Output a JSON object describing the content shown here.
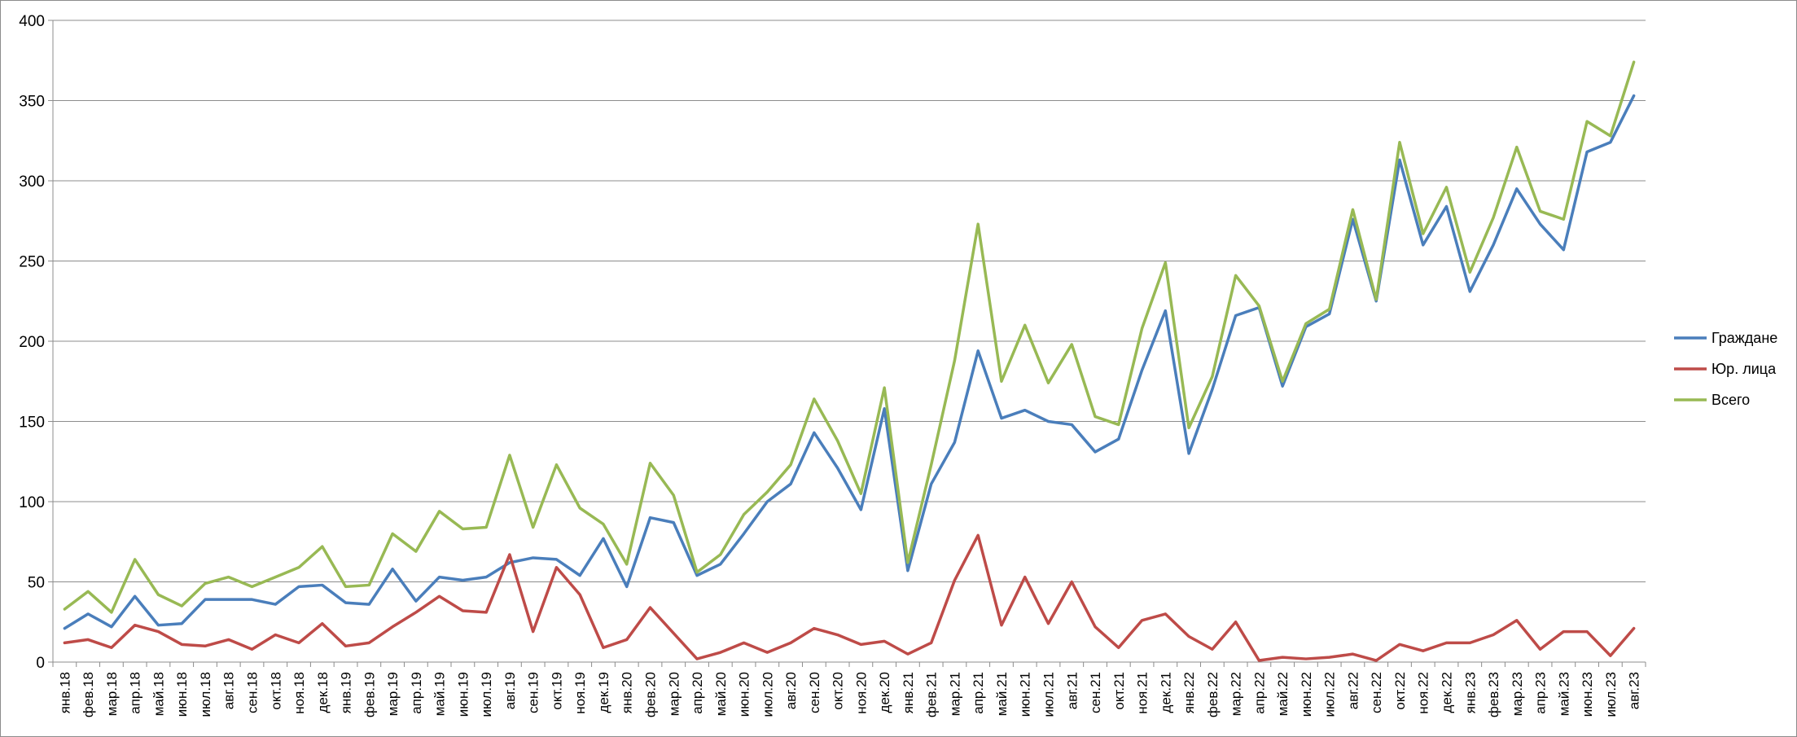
{
  "chart_data": {
    "type": "line",
    "title": "",
    "xlabel": "",
    "ylabel": "",
    "ylim": [
      0,
      400
    ],
    "yticks": [
      0,
      50,
      100,
      150,
      200,
      250,
      300,
      350,
      400
    ],
    "grid": "horizontal",
    "legend_position": "right",
    "categories": [
      "янв.18",
      "фев.18",
      "мар.18",
      "апр.18",
      "май.18",
      "июн.18",
      "июл.18",
      "авг.18",
      "сен.18",
      "окт.18",
      "ноя.18",
      "дек.18",
      "янв.19",
      "фев.19",
      "мар.19",
      "апр.19",
      "май.19",
      "июн.19",
      "июл.19",
      "авг.19",
      "сен.19",
      "окт.19",
      "ноя.19",
      "дек.19",
      "янв.20",
      "фев.20",
      "мар.20",
      "апр.20",
      "май.20",
      "июн.20",
      "июл.20",
      "авг.20",
      "сен.20",
      "окт.20",
      "ноя.20",
      "дек.20",
      "янв.21",
      "фев.21",
      "мар.21",
      "апр.21",
      "май.21",
      "июн.21",
      "июл.21",
      "авг.21",
      "сен.21",
      "окт.21",
      "ноя.21",
      "дек.21",
      "янв.22",
      "фев.22",
      "мар.22",
      "апр.22",
      "май.22",
      "июн.22",
      "июл.22",
      "авг.22",
      "сен.22",
      "окт.22",
      "ноя.22",
      "дек.22",
      "янв.23",
      "фев.23",
      "мар.23",
      "апр.23",
      "май.23",
      "июн.23",
      "июл.23",
      "авг.23"
    ],
    "series": [
      {
        "name": "Граждане",
        "color": "#4a7ebb",
        "values": [
          21,
          30,
          22,
          41,
          23,
          24,
          39,
          39,
          39,
          36,
          47,
          48,
          37,
          36,
          58,
          38,
          53,
          51,
          53,
          62,
          65,
          64,
          54,
          77,
          47,
          90,
          87,
          54,
          61,
          80,
          100,
          111,
          143,
          121,
          95,
          158,
          57,
          111,
          137,
          194,
          152,
          157,
          150,
          148,
          131,
          139,
          182,
          219,
          130,
          170,
          216,
          221,
          172,
          209,
          217,
          276,
          225,
          313,
          260,
          284,
          231,
          260,
          295,
          273,
          257,
          318,
          324,
          353
        ]
      },
      {
        "name": "Юр. лица",
        "color": "#be4b48",
        "values": [
          12,
          14,
          9,
          23,
          19,
          11,
          10,
          14,
          8,
          17,
          12,
          24,
          10,
          12,
          22,
          31,
          41,
          32,
          31,
          67,
          19,
          59,
          42,
          9,
          14,
          34,
          18,
          2,
          6,
          12,
          6,
          12,
          21,
          17,
          11,
          13,
          5,
          12,
          51,
          79,
          23,
          53,
          24,
          50,
          22,
          9,
          26,
          30,
          16,
          8,
          25,
          1,
          3,
          2,
          3,
          5,
          1,
          11,
          7,
          12,
          12,
          17,
          26,
          8,
          19,
          19,
          4,
          21
        ]
      },
      {
        "name": "Всего",
        "color": "#98b954",
        "values": [
          33,
          44,
          31,
          64,
          42,
          35,
          49,
          53,
          47,
          53,
          59,
          72,
          47,
          48,
          80,
          69,
          94,
          83,
          84,
          129,
          84,
          123,
          96,
          86,
          61,
          124,
          104,
          56,
          67,
          92,
          106,
          123,
          164,
          138,
          105,
          171,
          62,
          123,
          188,
          273,
          175,
          210,
          174,
          198,
          153,
          148,
          208,
          249,
          146,
          178,
          241,
          222,
          175,
          211,
          220,
          282,
          226,
          324,
          267,
          296,
          243,
          277,
          321,
          281,
          276,
          337,
          328,
          374
        ]
      }
    ]
  }
}
